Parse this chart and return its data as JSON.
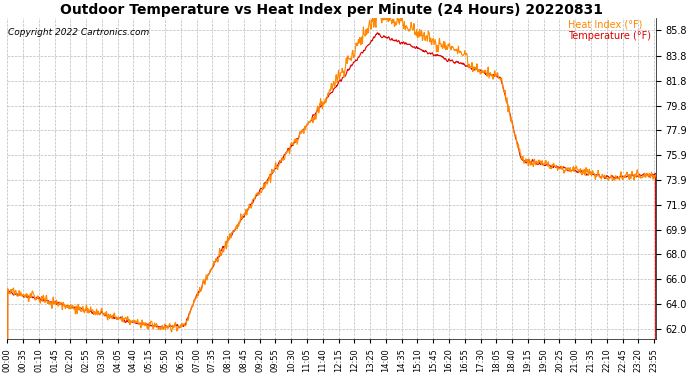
{
  "title": "Outdoor Temperature vs Heat Index per Minute (24 Hours) 20220831",
  "copyright": "Copyright 2022 Cartronics.com",
  "legend_heat": "Heat Index (°F)",
  "legend_temp": "Temperature (°F)",
  "temp_color": "#dd0000",
  "heat_color": "#ff8800",
  "background_color": "#ffffff",
  "grid_color": "#bbbbbb",
  "title_fontsize": 10,
  "yticks": [
    62.0,
    64.0,
    66.0,
    68.0,
    69.9,
    71.9,
    73.9,
    75.9,
    77.9,
    79.8,
    81.8,
    83.8,
    85.8
  ],
  "ymin": 61.2,
  "ymax": 86.8,
  "total_minutes": 1440,
  "xtick_interval": 35,
  "ylabel_fontsize": 7,
  "xlabel_fontsize": 6
}
